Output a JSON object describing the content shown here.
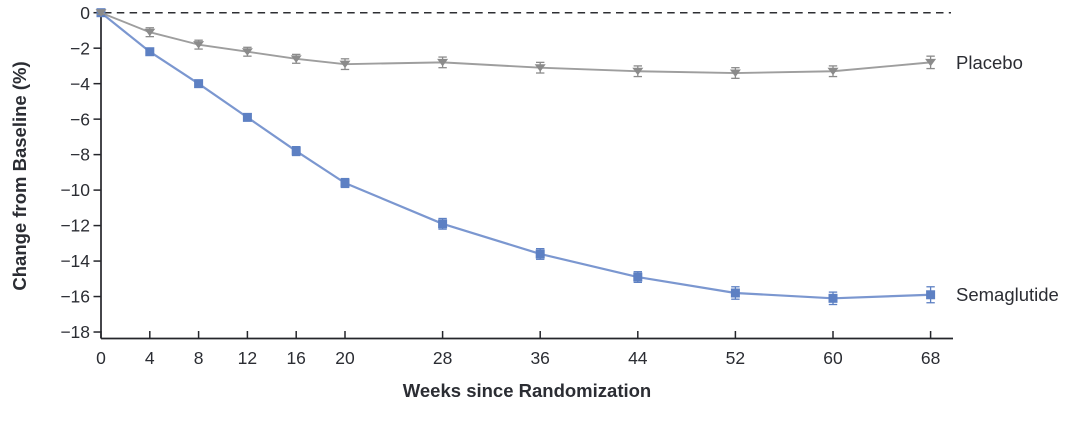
{
  "figure": {
    "background_color": "#ffffff"
  },
  "chart_data": {
    "type": "line",
    "title": "",
    "xlabel": "Weeks since Randomization",
    "ylabel": "Change from Baseline (%)",
    "x": [
      0,
      4,
      8,
      12,
      16,
      20,
      28,
      36,
      44,
      52,
      60,
      68
    ],
    "xticks": [
      0,
      4,
      8,
      12,
      16,
      20,
      28,
      36,
      44,
      52,
      60,
      68
    ],
    "yticks": [
      0,
      -2,
      -4,
      -6,
      -8,
      -10,
      -12,
      -14,
      -16,
      -18
    ],
    "xlim": [
      0,
      69.8
    ],
    "ylim": [
      -18.4,
      0
    ],
    "grid": false,
    "reference_line": {
      "y": 0,
      "style": "dashed"
    },
    "legend_position": "end-of-line-labels",
    "series": [
      {
        "name": "Semaglutide",
        "marker": "square",
        "line_color": "#7b97d0",
        "marker_color": "#5d80c3",
        "values": [
          0,
          -2.2,
          -4.0,
          -5.9,
          -7.8,
          -9.6,
          -11.9,
          -13.6,
          -14.9,
          -15.8,
          -16.1,
          -15.9
        ],
        "error": [
          0.1,
          0.2,
          0.2,
          0.2,
          0.25,
          0.25,
          0.3,
          0.3,
          0.3,
          0.35,
          0.35,
          0.45
        ]
      },
      {
        "name": "Placebo",
        "marker": "triangle-down",
        "line_color": "#9e9e9e",
        "marker_color": "#8b8b8b",
        "values": [
          0,
          -1.1,
          -1.8,
          -2.2,
          -2.6,
          -2.9,
          -2.8,
          -3.1,
          -3.3,
          -3.4,
          -3.3,
          -2.8
        ],
        "error": [
          0.1,
          0.25,
          0.25,
          0.25,
          0.25,
          0.3,
          0.3,
          0.3,
          0.3,
          0.3,
          0.3,
          0.35
        ]
      }
    ],
    "colors": {
      "axis": "#25262b",
      "text": "#2b2d33",
      "reference_line": "#2e2f33",
      "background": "#ffffff"
    }
  }
}
